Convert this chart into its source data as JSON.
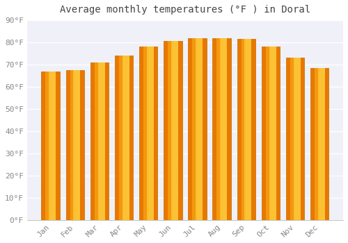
{
  "title": "Average monthly temperatures (°F ) in Doral",
  "months": [
    "Jan",
    "Feb",
    "Mar",
    "Apr",
    "May",
    "Jun",
    "Jul",
    "Aug",
    "Sep",
    "Oct",
    "Nov",
    "Dec"
  ],
  "values": [
    67,
    67.5,
    71,
    74,
    78,
    80.5,
    82,
    82,
    81.5,
    78,
    73,
    68.5
  ],
  "bar_color_dark": "#E87800",
  "bar_color_light": "#FFD040",
  "bar_edge_color": "#C8780A",
  "ylim": [
    0,
    90
  ],
  "yticks": [
    0,
    10,
    20,
    30,
    40,
    50,
    60,
    70,
    80,
    90
  ],
  "plot_bg_color": "#F0F0F8",
  "fig_bg_color": "#FFFFFF",
  "grid_color": "#FFFFFF",
  "title_fontsize": 10,
  "tick_fontsize": 8,
  "tick_label_color": "#888888",
  "figsize": [
    5.0,
    3.5
  ],
  "dpi": 100
}
